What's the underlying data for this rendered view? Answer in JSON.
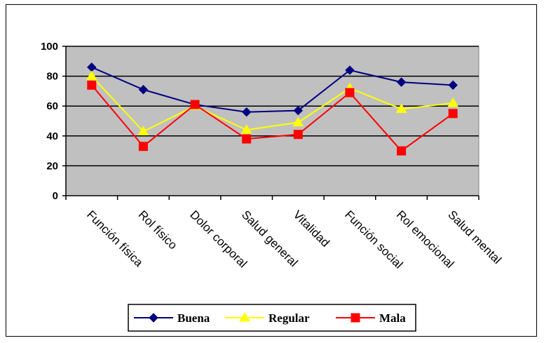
{
  "chart_data": {
    "type": "line",
    "categories": [
      "Función física",
      "Rol físico",
      "Dolor corporal",
      "Salud general",
      "Vitalidad",
      "Función social",
      "Rol emocional",
      "Salud mental"
    ],
    "ylim": [
      0,
      100
    ],
    "yticks": [
      0,
      20,
      40,
      60,
      80,
      100
    ],
    "grid": true,
    "plot_background": "#c0c0c0",
    "legend_position": "bottom",
    "series": [
      {
        "name": "Buena",
        "color": "#000080",
        "marker": "diamond",
        "values": [
          86,
          71,
          61,
          56,
          57,
          84,
          76,
          74
        ]
      },
      {
        "name": "Regular",
        "color": "#ffff00",
        "marker": "triangle",
        "values": [
          80,
          43,
          60,
          44,
          49,
          72,
          58,
          62
        ]
      },
      {
        "name": "Mala",
        "color": "#ff0000",
        "marker": "square",
        "values": [
          74,
          33,
          61,
          38,
          41,
          69,
          30,
          55
        ]
      }
    ]
  }
}
